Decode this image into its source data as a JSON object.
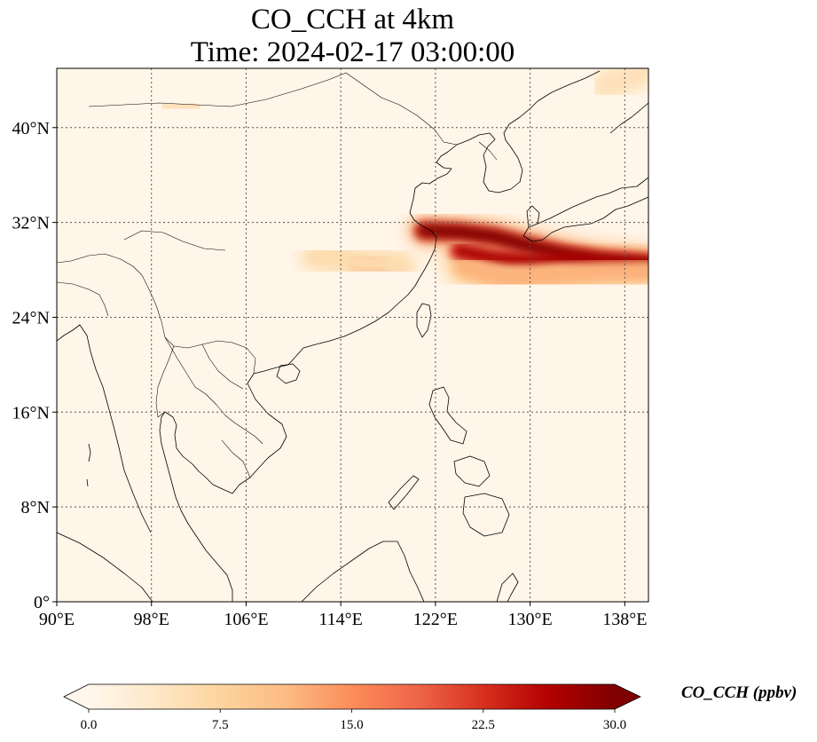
{
  "title": {
    "line1": "CO_CCH at 4km",
    "line2": "Time: 2024-02-17 03:00:00"
  },
  "map": {
    "lon_range": [
      90,
      140
    ],
    "lat_range": [
      0,
      45
    ],
    "lon_ticks": [
      {
        "value": 90,
        "label": "90°E"
      },
      {
        "value": 98,
        "label": "98°E"
      },
      {
        "value": 106,
        "label": "106°E"
      },
      {
        "value": 114,
        "label": "114°E"
      },
      {
        "value": 122,
        "label": "122°E"
      },
      {
        "value": 130,
        "label": "130°E"
      },
      {
        "value": 138,
        "label": "138°E"
      }
    ],
    "lat_ticks": [
      {
        "value": 0,
        "label": "0°"
      },
      {
        "value": 8,
        "label": "8°N"
      },
      {
        "value": 16,
        "label": "16°N"
      },
      {
        "value": 24,
        "label": "24°N"
      },
      {
        "value": 32,
        "label": "32°N"
      },
      {
        "value": 40,
        "label": "40°N"
      }
    ],
    "gridlines": true,
    "colormap": "OrRd",
    "background_color": "#fff5e9"
  },
  "colorbar": {
    "label": "CO_CCH (ppbv)",
    "min": 0.0,
    "max": 30.0,
    "extend": "both",
    "orientation": "horizontal",
    "ticks": [
      {
        "value": 0,
        "label": "0.0"
      },
      {
        "value": 7.5,
        "label": "7.5"
      },
      {
        "value": 15,
        "label": "15.0"
      },
      {
        "value": 22.5,
        "label": "22.5"
      },
      {
        "value": 30,
        "label": "30.0"
      }
    ],
    "colors": [
      "#fff7ec",
      "#fee8c8",
      "#fdd49e",
      "#fdbb84",
      "#fc8d59",
      "#ef6548",
      "#d7301f",
      "#b30000",
      "#7f0000"
    ]
  },
  "plumes": [
    {
      "name": "main-plume-north",
      "points": [
        [
          121.0,
          31.3
        ],
        [
          124.0,
          31.2
        ],
        [
          127.0,
          30.8
        ],
        [
          130.0,
          30.0
        ],
        [
          133.0,
          29.3
        ],
        [
          136.0,
          28.8
        ],
        [
          140.0,
          28.5
        ]
      ],
      "level": 30
    },
    {
      "name": "main-plume-south",
      "points": [
        [
          124.0,
          29.6
        ],
        [
          127.0,
          29.0
        ],
        [
          130.0,
          28.8
        ],
        [
          133.0,
          29.0
        ],
        [
          136.0,
          28.7
        ],
        [
          140.0,
          28.4
        ]
      ],
      "level": 27
    },
    {
      "name": "plume-tail-south",
      "points": [
        [
          124.5,
          28.3
        ],
        [
          128.0,
          27.3
        ],
        [
          132.0,
          27.6
        ],
        [
          136.0,
          27.9
        ],
        [
          140.0,
          28.0
        ]
      ],
      "level": 12
    },
    {
      "name": "inland-blob",
      "points": [
        [
          115.2,
          28.8
        ],
        [
          116.5,
          28.5
        ],
        [
          117.5,
          28.2
        ]
      ],
      "level": 17
    },
    {
      "name": "inland-haze",
      "points": [
        [
          112.0,
          29.2
        ],
        [
          116.0,
          28.6
        ],
        [
          119.0,
          28.3
        ]
      ],
      "level": 6
    },
    {
      "name": "north-blob",
      "points": [
        [
          99.5,
          41.7
        ],
        [
          101.5,
          41.9
        ]
      ],
      "level": 5
    },
    {
      "name": "ne-corner",
      "points": [
        [
          136.5,
          43.5
        ],
        [
          140.0,
          45.0
        ]
      ],
      "level": 5
    }
  ]
}
